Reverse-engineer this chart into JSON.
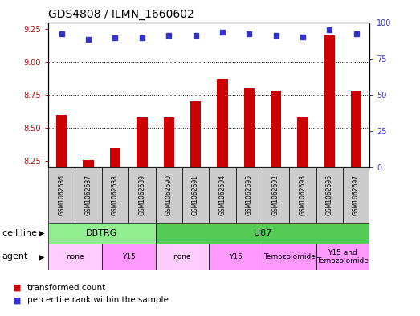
{
  "title": "GDS4808 / ILMN_1660602",
  "samples": [
    "GSM1062686",
    "GSM1062687",
    "GSM1062688",
    "GSM1062689",
    "GSM1062690",
    "GSM1062691",
    "GSM1062694",
    "GSM1062695",
    "GSM1062692",
    "GSM1062693",
    "GSM1062696",
    "GSM1062697"
  ],
  "transformed_count": [
    8.6,
    8.255,
    8.35,
    8.58,
    8.58,
    8.7,
    8.87,
    8.8,
    8.78,
    8.58,
    9.2,
    8.78
  ],
  "percentile_rank": [
    92,
    88,
    89,
    89,
    91,
    91,
    93,
    92,
    91,
    90,
    95,
    92
  ],
  "ylim_left": [
    8.2,
    9.3
  ],
  "ylim_right": [
    0,
    100
  ],
  "yticks_left": [
    8.25,
    8.5,
    8.75,
    9.0,
    9.25
  ],
  "yticks_right": [
    0,
    25,
    50,
    75,
    100
  ],
  "cell_line_groups": [
    {
      "label": "DBTRG",
      "start": 0,
      "end": 4,
      "color": "#90EE90"
    },
    {
      "label": "U87",
      "start": 4,
      "end": 12,
      "color": "#55CC55"
    }
  ],
  "agent_groups": [
    {
      "label": "none",
      "start": 0,
      "end": 2,
      "color": "#FFCCFF"
    },
    {
      "label": "Y15",
      "start": 2,
      "end": 4,
      "color": "#FF99FF"
    },
    {
      "label": "none",
      "start": 4,
      "end": 6,
      "color": "#FFCCFF"
    },
    {
      "label": "Y15",
      "start": 6,
      "end": 8,
      "color": "#FF99FF"
    },
    {
      "label": "Temozolomide",
      "start": 8,
      "end": 10,
      "color": "#FF99FF"
    },
    {
      "label": "Y15 and\nTemozolomide",
      "start": 10,
      "end": 12,
      "color": "#FF99FF"
    }
  ],
  "bar_color": "#CC0000",
  "dot_color": "#3333CC",
  "background_color": "#ffffff",
  "plot_bg_color": "#ffffff",
  "axis_color_left": "#CC0000",
  "axis_color_right": "#3333CC",
  "grid_color": "#000000",
  "sample_bg": "#CCCCCC",
  "bar_width": 0.4,
  "dot_size": 5,
  "title_fontsize": 10,
  "tick_fontsize": 7,
  "sample_fontsize": 5.5,
  "label_fontsize": 8,
  "legend_fontsize": 7.5
}
